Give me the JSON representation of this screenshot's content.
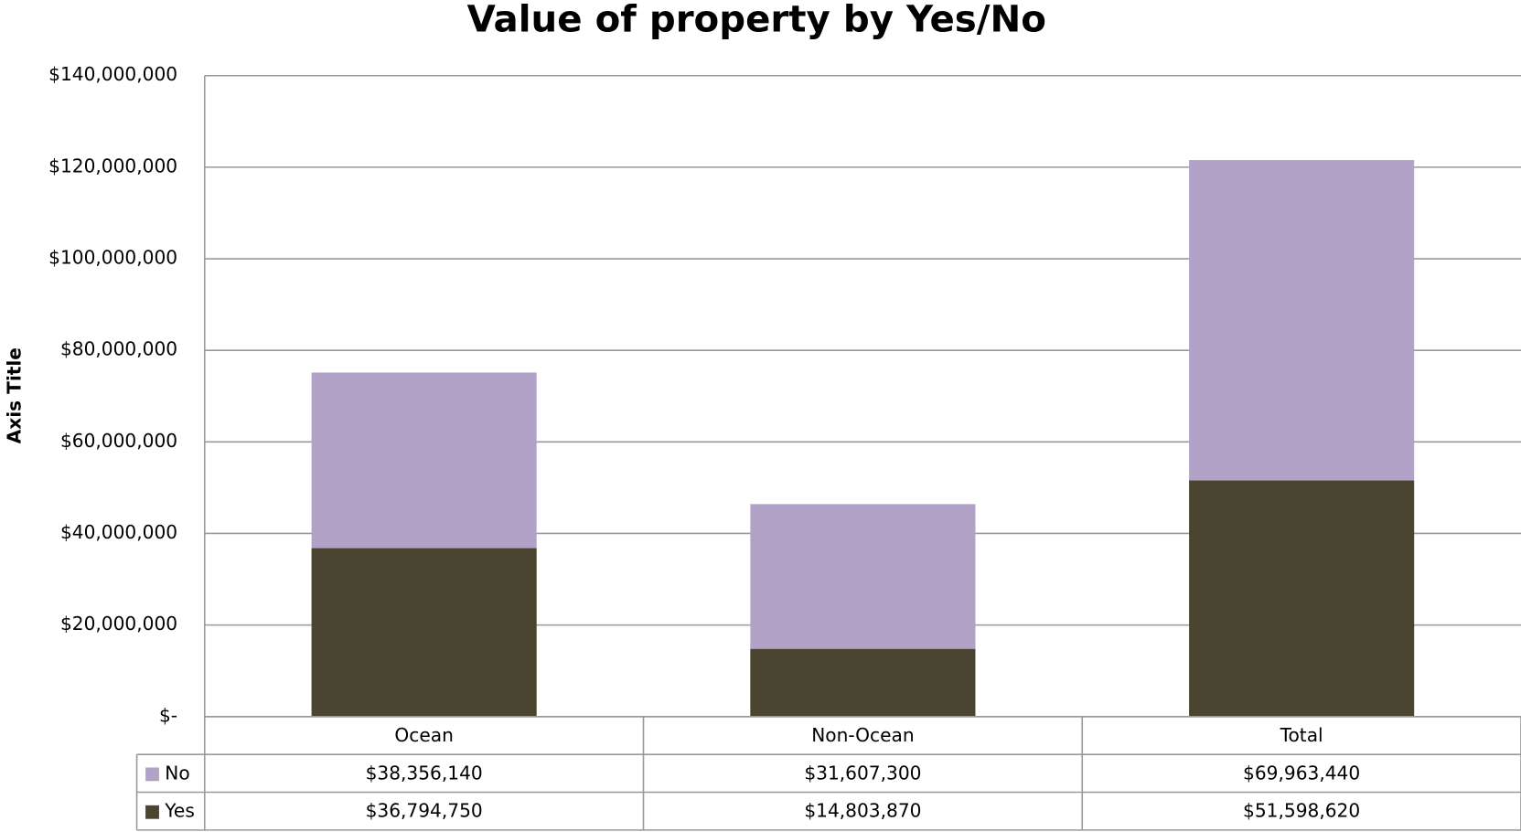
{
  "chart_data": {
    "type": "stacked_bar",
    "title": "Value of property by Yes/No",
    "y_label": "Axis Title",
    "categories": [
      "Ocean",
      "Non-Ocean",
      "Total"
    ],
    "series": [
      {
        "name": "Yes",
        "color": "#4a4530",
        "values": [
          36794750,
          14803870,
          51598620
        ],
        "value_labels": [
          "$36,794,750",
          "$14,803,870",
          "$51,598,620"
        ]
      },
      {
        "name": "No",
        "color": "#b3a2c8",
        "values": [
          38356140,
          31607300,
          69963440
        ],
        "value_labels": [
          "$38,356,140",
          "$31,607,300",
          "$69,963,440"
        ]
      }
    ],
    "ylim": [
      0,
      140000000
    ],
    "yticks": [
      {
        "value": 0,
        "label": "$-"
      },
      {
        "value": 20000000,
        "label": "$20,000,000"
      },
      {
        "value": 40000000,
        "label": "$40,000,000"
      },
      {
        "value": 60000000,
        "label": "$60,000,000"
      },
      {
        "value": 80000000,
        "label": "$80,000,000"
      },
      {
        "value": 100000000,
        "label": "$100,000,000"
      },
      {
        "value": 120000000,
        "label": "$120,000,000"
      },
      {
        "value": 140000000,
        "label": "$140,000,000"
      }
    ],
    "grid": true
  }
}
